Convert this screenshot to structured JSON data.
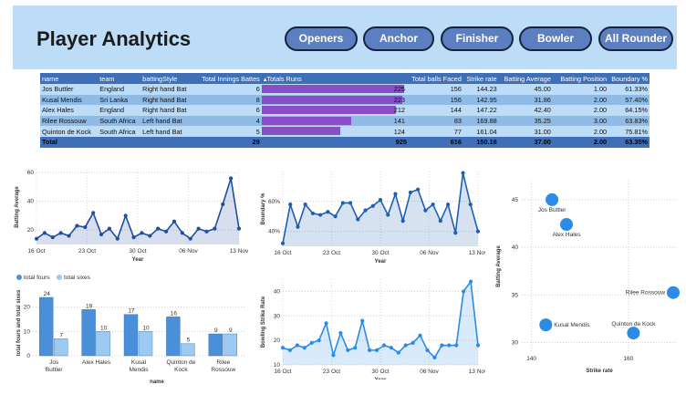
{
  "header": {
    "title": "Player Analytics",
    "buttons": [
      "Openers",
      "Anchor",
      "Finisher",
      "Bowler",
      "All Rounder"
    ]
  },
  "table": {
    "columns": [
      "name",
      "team",
      "battingStyle",
      "Total Innings Battes",
      "Totals Runs",
      "Total balls Faced",
      "Strike rate",
      "Batting Average",
      "Batting Position",
      "Boundary %"
    ],
    "rows": [
      [
        "Jos Buttler",
        "England",
        "Right hand Bat",
        "6",
        "225",
        "156",
        "144.23",
        "45.00",
        "1.00",
        "61.33%"
      ],
      [
        "Kusal Mendis",
        "Sri Lanka",
        "Right hand Bat",
        "8",
        "223",
        "156",
        "142.95",
        "31.86",
        "2.00",
        "57.40%"
      ],
      [
        "Alex Hales",
        "England",
        "Right hand Bat",
        "6",
        "212",
        "144",
        "147.22",
        "42.40",
        "2.00",
        "64.15%"
      ],
      [
        "Rilee Rossouw",
        "South Africa",
        "Left hand Bat",
        "4",
        "141",
        "83",
        "169.88",
        "35.25",
        "3.00",
        "63.83%"
      ],
      [
        "Quinton de Kock",
        "South Africa",
        "Left hand Bat",
        "5",
        "124",
        "77",
        "161.04",
        "31.00",
        "2.00",
        "75.81%"
      ]
    ],
    "total": [
      "Total",
      "",
      "",
      "29",
      "925",
      "616",
      "150.16",
      "37.00",
      "2.00",
      "63.35%"
    ],
    "run_bar_color": "#8a4ec8",
    "header_color": "#3f6fb6"
  },
  "chart_data": [
    {
      "type": "area",
      "ylabel": "Batting Average",
      "xlabel": "Year",
      "x_ticks": [
        "16 Oct",
        "23 Oct",
        "30 Oct",
        "06 Nov",
        "13 Nov"
      ],
      "y_ticks": [
        20,
        40,
        60
      ],
      "ylim": [
        10,
        62
      ],
      "values": [
        14,
        18,
        15,
        18,
        16,
        23,
        22,
        32,
        17,
        21,
        14,
        30,
        15,
        18,
        16,
        21,
        19,
        26,
        18,
        14,
        21,
        19,
        21,
        38,
        56,
        21
      ],
      "color": "#1f4fa0"
    },
    {
      "type": "area",
      "ylabel": "Boundary %",
      "xlabel": "Year",
      "x_ticks": [
        "16 Oct",
        "23 Oct",
        "30 Oct",
        "06 Nov",
        "13 Nov"
      ],
      "y_ticks": [
        "40%",
        "60%"
      ],
      "ylim": [
        30,
        80
      ],
      "values": [
        32,
        58,
        43,
        58,
        52,
        51,
        53,
        50,
        59,
        59,
        48,
        54,
        57,
        61,
        51,
        65,
        47,
        66,
        68,
        54,
        58,
        47,
        58,
        39,
        79,
        58,
        40
      ],
      "color": "#1f5fb0"
    },
    {
      "type": "scatter",
      "xlabel": "Strike rate",
      "ylabel": "Batting Average",
      "x_ticks": [
        140,
        160
      ],
      "y_ticks": [
        30,
        35,
        40,
        45
      ],
      "xlim": [
        138,
        170
      ],
      "ylim": [
        29,
        47
      ],
      "points": [
        {
          "label": "Jos Buttler",
          "x": 144.23,
          "y": 45.0
        },
        {
          "label": "Alex Hales",
          "x": 147.22,
          "y": 42.4
        },
        {
          "label": "Rilee Rossouw",
          "x": 169.88,
          "y": 35.25
        },
        {
          "label": "Kusal Mendis",
          "x": 142.95,
          "y": 31.86
        },
        {
          "label": "Quinton de Kock",
          "x": 161.04,
          "y": 31.0
        }
      ],
      "color": "#2b8be6"
    },
    {
      "type": "bar",
      "ylabel": "total fours and total sixes",
      "xlabel": "name",
      "categories": [
        "Jos Buttler",
        "Alex Hales",
        "Kusal Mendis",
        "Quinton de Kock",
        "Rilee Rossouw"
      ],
      "y_ticks": [
        0,
        10,
        20
      ],
      "ylim": [
        0,
        27
      ],
      "series": [
        {
          "name": "total fours",
          "values": [
            24,
            19,
            17,
            16,
            9
          ],
          "color": "#4a90d9"
        },
        {
          "name": "total sixes",
          "values": [
            7,
            10,
            10,
            5,
            9
          ],
          "color": "#9ccaf2"
        }
      ]
    },
    {
      "type": "area",
      "ylabel": "Bowling Strike Rate",
      "xlabel": "Year",
      "x_ticks": [
        "16 Oct",
        "23 Oct",
        "30 Oct",
        "06 Nov",
        "13 Nov"
      ],
      "y_ticks": [
        10,
        20,
        30,
        40
      ],
      "ylim": [
        10,
        45
      ],
      "values": [
        17,
        16,
        18,
        17,
        19,
        20,
        27,
        14,
        23,
        16,
        17,
        28,
        16,
        16,
        18,
        17,
        15,
        18,
        19,
        22,
        16,
        13,
        18,
        18,
        18,
        40,
        44,
        18
      ],
      "color": "#2b8be6"
    }
  ]
}
